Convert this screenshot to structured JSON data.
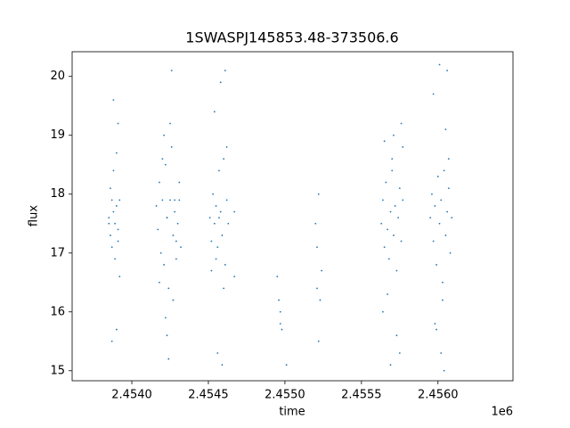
{
  "chart_data": {
    "type": "scatter",
    "title": "1SWASPJ145853.48-373506.6",
    "x_label": "time",
    "y_label": "flux",
    "x_offset_label": "1e6",
    "xlim": [
      2.45361,
      2.45649
    ],
    "ylim": [
      14.83,
      20.42
    ],
    "xticks": [
      {
        "value": 2.454,
        "label": "2.4540"
      },
      {
        "value": 2.4545,
        "label": "2.4545"
      },
      {
        "value": 2.455,
        "label": "2.4550"
      },
      {
        "value": 2.4555,
        "label": "2.4555"
      },
      {
        "value": 2.456,
        "label": "2.4560"
      }
    ],
    "yticks": [
      15,
      16,
      17,
      18,
      19,
      20
    ],
    "series": [
      {
        "name": "flux",
        "color": "#1f77b4",
        "x": [
          2.45385,
          2.45386,
          2.45386,
          2.45387,
          2.45387,
          2.45388,
          2.45388,
          2.45389,
          2.45389,
          2.4539,
          2.4539,
          2.45391,
          2.45391,
          2.45392,
          2.45392,
          2.45385,
          2.45388,
          2.4539,
          2.45387,
          2.45391,
          2.45416,
          2.45417,
          2.45418,
          2.45419,
          2.4542,
          2.45421,
          2.45422,
          2.45423,
          2.45424,
          2.45425,
          2.45426,
          2.45427,
          2.45428,
          2.45429,
          2.4543,
          2.45431,
          2.45432,
          2.45418,
          2.45421,
          2.45423,
          2.45424,
          2.45426,
          2.45428,
          2.4542,
          2.45422,
          2.45425,
          2.45427,
          2.45429,
          2.45431,
          2.45423,
          2.45451,
          2.45452,
          2.45453,
          2.45454,
          2.45455,
          2.45456,
          2.45457,
          2.45458,
          2.45459,
          2.4546,
          2.45461,
          2.45462,
          2.45463,
          2.45452,
          2.45454,
          2.45456,
          2.45458,
          2.4546,
          2.45462,
          2.45455,
          2.45457,
          2.45459,
          2.45461,
          2.45467,
          2.45467,
          2.45495,
          2.45496,
          2.45497,
          2.45497,
          2.45498,
          2.45501,
          2.4552,
          2.45521,
          2.45522,
          2.45523,
          2.45524,
          2.45521,
          2.45522,
          2.45563,
          2.45564,
          2.45565,
          2.45566,
          2.45567,
          2.45568,
          2.45569,
          2.4557,
          2.45571,
          2.45572,
          2.45573,
          2.45574,
          2.45575,
          2.45576,
          2.45577,
          2.45565,
          2.45567,
          2.45569,
          2.45571,
          2.45573,
          2.45575,
          2.45577,
          2.45564,
          2.4557,
          2.45576,
          2.45595,
          2.45596,
          2.45597,
          2.45598,
          2.45599,
          2.456,
          2.45601,
          2.45602,
          2.45603,
          2.45604,
          2.45605,
          2.45606,
          2.45607,
          2.45608,
          2.45609,
          2.45597,
          2.45599,
          2.45601,
          2.45603,
          2.45605,
          2.45607,
          2.45598,
          2.45602,
          2.45606,
          2.45604
        ],
        "values": [
          17.6,
          18.1,
          17.3,
          17.9,
          17.1,
          17.7,
          18.4,
          17.5,
          16.9,
          17.8,
          18.7,
          17.4,
          17.2,
          17.9,
          16.6,
          17.5,
          19.6,
          15.7,
          15.5,
          19.2,
          17.8,
          17.4,
          18.2,
          17.0,
          17.9,
          16.8,
          18.5,
          17.6,
          16.4,
          17.9,
          18.8,
          17.3,
          17.7,
          16.9,
          17.5,
          18.2,
          17.1,
          16.5,
          19.0,
          15.6,
          15.2,
          20.1,
          17.9,
          18.6,
          15.9,
          19.2,
          16.2,
          17.2,
          17.9,
          17.6,
          17.6,
          17.2,
          18.0,
          17.5,
          17.8,
          17.1,
          18.4,
          17.7,
          17.3,
          18.6,
          16.8,
          17.9,
          17.5,
          16.7,
          19.4,
          15.3,
          19.9,
          16.4,
          18.8,
          16.9,
          17.6,
          15.1,
          20.1,
          17.7,
          16.6,
          16.6,
          16.2,
          15.8,
          16.0,
          15.7,
          15.1,
          17.5,
          16.4,
          15.5,
          16.2,
          16.7,
          17.1,
          18.0,
          17.5,
          17.9,
          17.1,
          18.2,
          17.4,
          16.9,
          17.7,
          18.4,
          17.3,
          17.8,
          16.7,
          17.6,
          18.1,
          17.2,
          17.9,
          18.9,
          16.3,
          15.1,
          19.0,
          15.6,
          15.3,
          18.8,
          16.0,
          18.6,
          19.2,
          17.6,
          18.0,
          17.2,
          17.8,
          16.8,
          18.3,
          17.5,
          17.9,
          16.5,
          18.4,
          17.3,
          17.7,
          18.1,
          17.0,
          17.6,
          19.7,
          15.7,
          20.2,
          16.2,
          19.1,
          18.6,
          15.8,
          15.3,
          20.1,
          15.0
        ]
      }
    ]
  }
}
